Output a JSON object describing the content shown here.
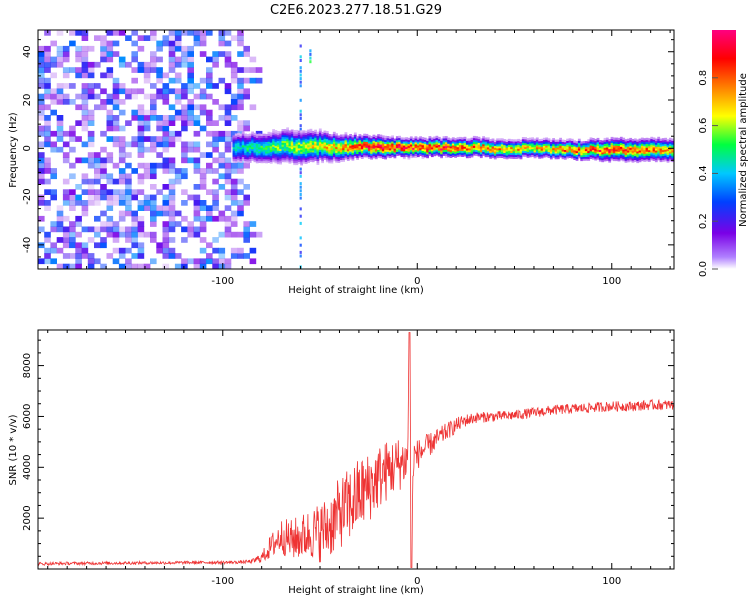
{
  "title": "C2E6.2023.277.18.51.G29",
  "chart_data": [
    {
      "type": "heatmap",
      "title": "C2E6.2023.277.18.51.G29",
      "xlabel": "Height of straight line (km)",
      "ylabel": "Frequency (Hz)",
      "xlim": [
        -195,
        132
      ],
      "ylim": [
        -50,
        49
      ],
      "x_ticks": [
        -100,
        0,
        100
      ],
      "x_tick_labels": [
        "-100",
        "0",
        "100"
      ],
      "y_ticks": [
        -40,
        -20,
        0,
        20,
        40
      ],
      "y_tick_labels": [
        "-40",
        "-20",
        "0",
        "20",
        "40"
      ],
      "grid": false,
      "colorbar": {
        "label": "Normalized spectral amplitude",
        "range": [
          0,
          1
        ],
        "ticks": [
          0.0,
          0.2,
          0.4,
          0.6,
          0.8
        ],
        "tick_labels": [
          "0.0",
          "0.2",
          "0.4",
          "0.6",
          "0.8"
        ],
        "colors": [
          "#ffffff",
          "#7a00e6",
          "#0040ff",
          "#00c8ff",
          "#00ff40",
          "#ffff00",
          "#ff8000",
          "#ff0000",
          "#ff0080"
        ]
      },
      "noise_region": {
        "x": [
          -195,
          -80
        ],
        "y": [
          -50,
          49
        ],
        "level": [
          0.05,
          0.35
        ]
      },
      "carrier_line": {
        "x": [
          -95,
          -80,
          -70,
          -60,
          -50,
          -40,
          -30,
          -20,
          -10,
          0,
          10,
          20,
          30,
          40,
          60,
          80,
          100,
          120,
          132
        ],
        "center_freq": [
          0,
          0,
          0.5,
          0,
          0.5,
          0,
          0.5,
          0,
          0,
          0,
          0,
          0,
          0,
          -0.5,
          -0.5,
          -1,
          -1,
          -1,
          -1
        ],
        "peak_amplitude": [
          0.45,
          0.55,
          0.6,
          0.65,
          0.75,
          0.8,
          0.9,
          0.95,
          0.95,
          0.95,
          0.95,
          0.9,
          0.85,
          0.8,
          0.75,
          0.85,
          0.9,
          0.85,
          0.8
        ],
        "width_hz": [
          8,
          8,
          9,
          9,
          8,
          7,
          6,
          6,
          5,
          5,
          5,
          5,
          5,
          5,
          5,
          5,
          6,
          6,
          6
        ]
      },
      "vertical_streaks": [
        {
          "x": -60,
          "y": [
            -50,
            45
          ],
          "level": 0.35
        },
        {
          "x": -55,
          "y": [
            35,
            44
          ],
          "level": 0.45
        }
      ]
    },
    {
      "type": "line",
      "xlabel": "Height of straight line (km)",
      "ylabel": "SNR (10 * v/v)",
      "xlim": [
        -195,
        132
      ],
      "ylim": [
        0,
        9400
      ],
      "x_ticks": [
        -100,
        0,
        100
      ],
      "x_tick_labels": [
        "-100",
        "0",
        "100"
      ],
      "y_ticks": [
        2000,
        4000,
        6000,
        8000
      ],
      "y_tick_labels": [
        "2000",
        "4000",
        "6000",
        "8000"
      ],
      "grid": false,
      "line_color": "#ee3333",
      "x": [
        -195,
        -180,
        -160,
        -140,
        -120,
        -100,
        -90,
        -85,
        -80,
        -75,
        -70,
        -65,
        -60,
        -55,
        -50,
        -45,
        -40,
        -35,
        -30,
        -25,
        -20,
        -15,
        -10,
        -5,
        -4,
        -3,
        -2,
        -1,
        0,
        5,
        10,
        15,
        20,
        25,
        30,
        40,
        50,
        60,
        70,
        80,
        90,
        100,
        110,
        120,
        132
      ],
      "y": [
        200,
        220,
        230,
        240,
        250,
        260,
        270,
        300,
        450,
        900,
        1300,
        1150,
        1250,
        1400,
        1450,
        1700,
        2200,
        2500,
        2900,
        3200,
        3600,
        3900,
        4100,
        4300,
        9300,
        50,
        4400,
        4450,
        4500,
        4800,
        5100,
        5400,
        5650,
        5850,
        5950,
        6000,
        6050,
        6150,
        6250,
        6300,
        6350,
        6400,
        6400,
        6450,
        6450
      ],
      "noise_amplitude": [
        60,
        60,
        60,
        60,
        60,
        60,
        60,
        80,
        200,
        500,
        700,
        800,
        900,
        1000,
        1200,
        1300,
        1400,
        1500,
        1500,
        1400,
        1300,
        1200,
        1100,
        900,
        0,
        0,
        800,
        700,
        600,
        500,
        400,
        350,
        300,
        250,
        220,
        200,
        200,
        200,
        200,
        200,
        200,
        200,
        200,
        200,
        200
      ]
    }
  ]
}
